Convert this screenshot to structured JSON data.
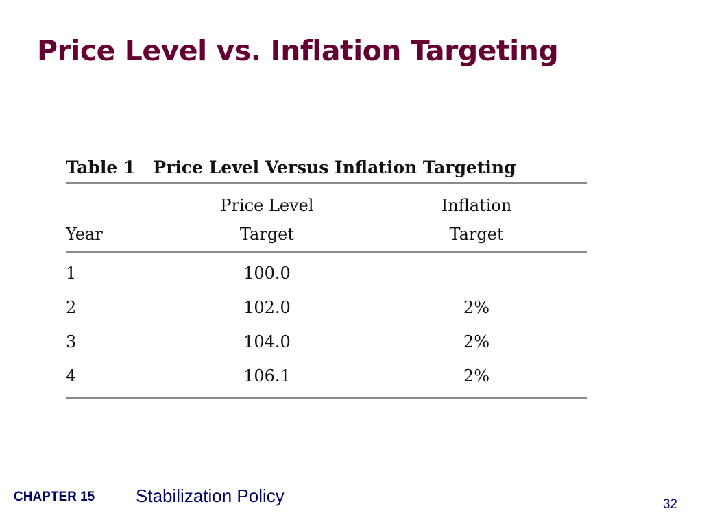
{
  "slide": {
    "title": "Price Level vs. Inflation Targeting"
  },
  "table": {
    "caption_number": "Table 1",
    "caption_text": "Price Level Versus Inflation Targeting",
    "headers": {
      "year": "Year",
      "price_level_line1": "Price Level",
      "price_level_line2": "Target",
      "inflation_line1": "Inflation",
      "inflation_line2": "Target"
    },
    "rows": [
      {
        "year": "1",
        "price_level_target": "100.0",
        "inflation_target": ""
      },
      {
        "year": "2",
        "price_level_target": "102.0",
        "inflation_target": "2%"
      },
      {
        "year": "3",
        "price_level_target": "104.0",
        "inflation_target": "2%"
      },
      {
        "year": "4",
        "price_level_target": "106.1",
        "inflation_target": "2%"
      }
    ]
  },
  "footer": {
    "chapter": "CHAPTER 15",
    "topic": "Stabilization Policy",
    "page_number": "32"
  }
}
